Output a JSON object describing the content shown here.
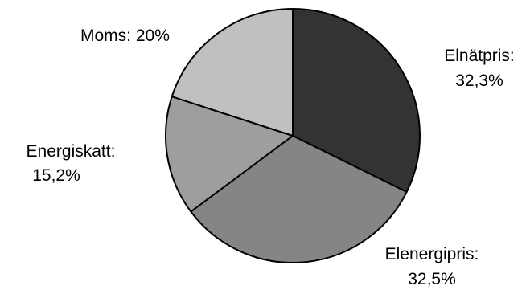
{
  "chart_data": {
    "type": "pie",
    "slices": [
      {
        "label": "Elnätpris",
        "value": 32.3,
        "value_text": "32,3%",
        "color": "#333333"
      },
      {
        "label": "Elenergipris",
        "value": 32.5,
        "value_text": "32,5%",
        "color": "#858585"
      },
      {
        "label": "Energiskatt",
        "value": 15.2,
        "value_text": "15,2%",
        "color": "#9e9e9e"
      },
      {
        "label": "Moms",
        "value": 20,
        "value_text": "20%",
        "color": "#c0c0c0"
      }
    ],
    "start": "12 o'clock",
    "direction": "clockwise",
    "slice_border_color": "#000000",
    "legend": "none"
  },
  "data_labels": {
    "elnatpris": {
      "name": "Elnätpris:",
      "percent": "32,3%"
    },
    "elenergipris": {
      "name": "Elenergipris:",
      "percent": "32,5%"
    },
    "energiskatt": {
      "name": "Energiskatt:",
      "percent": "15,2%"
    },
    "moms": {
      "text": "Moms: 20%"
    }
  }
}
